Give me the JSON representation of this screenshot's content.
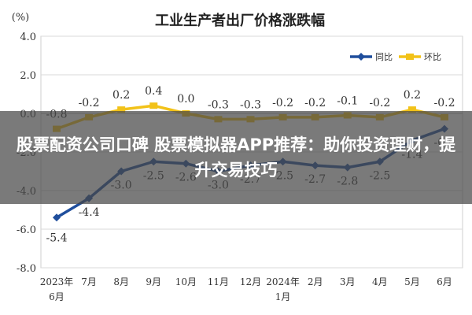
{
  "chart_data": {
    "type": "line",
    "title": "工业生产者出厂价格涨跌幅",
    "ylabel": "(%)",
    "ylim": [
      -8.0,
      4.0
    ],
    "yticks": [
      "4.0",
      "2.0",
      "0.0",
      "-2.0",
      "-4.0",
      "-6.0",
      "-8.0"
    ],
    "ytick_values": [
      4,
      2,
      0,
      -2,
      -4,
      -6,
      -8
    ],
    "categories": [
      "2023年\n6月",
      "7月",
      "8月",
      "9月",
      "10月",
      "11月",
      "12月",
      "2024年\n1月",
      "2月",
      "3月",
      "4月",
      "5月",
      "6月"
    ],
    "grid": true,
    "legend_position": "top-right",
    "series": [
      {
        "name": "同比",
        "color": "#1f4e9c",
        "values": [
          -5.4,
          -4.4,
          -3.0,
          -2.5,
          -2.6,
          -3.0,
          -2.7,
          -2.5,
          -2.7,
          -2.8,
          -2.5,
          -1.4,
          -0.8
        ],
        "labels": [
          "-5.4",
          "-4.4",
          "-3.0",
          "-2.5",
          "-2.6",
          "-3.0",
          "-2.7",
          "-2.5",
          "-2.7",
          "-2.8",
          "-2.5",
          "-1.4",
          "-0.8"
        ]
      },
      {
        "name": "环比",
        "color": "#f2c218",
        "values": [
          -0.8,
          -0.2,
          0.2,
          0.4,
          0.0,
          -0.3,
          -0.3,
          -0.2,
          -0.2,
          -0.1,
          -0.2,
          0.2,
          -0.2
        ],
        "labels": [
          "-0.8",
          "-0.2",
          "0.2",
          "0.4",
          "0.0",
          "-0.3",
          "-0.3",
          "-0.2",
          "-0.2",
          "-0.1",
          "-0.2",
          "0.2",
          "-0.2"
        ]
      }
    ]
  },
  "overlay": {
    "text": "股票配资公司口碑 股票模拟器APP推荐：助你投资理财，提升交易技巧"
  }
}
